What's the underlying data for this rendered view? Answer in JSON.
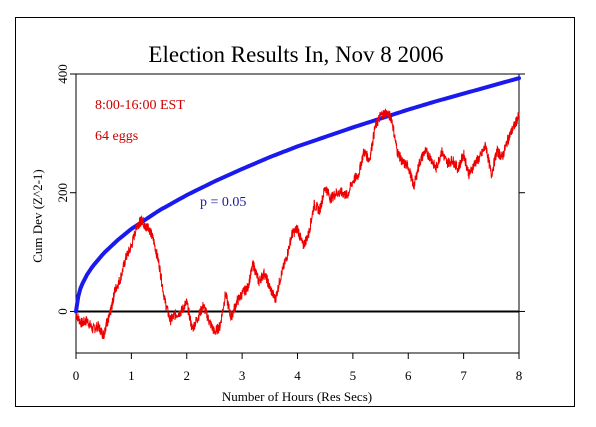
{
  "chart_data": {
    "type": "line",
    "title": "Election Results In, Nov 8 2006",
    "xlabel": "Number of Hours (Res Secs)",
    "ylabel": "Cum Dev (Z^2-1)",
    "xlim": [
      0,
      8
    ],
    "ylim": [
      -70,
      400
    ],
    "x_ticks": [
      "0",
      "1",
      "2",
      "3",
      "4",
      "5",
      "6",
      "7",
      "8"
    ],
    "y_ticks": [
      "0",
      "200",
      "400"
    ],
    "grid": false,
    "annotations": {
      "time_range": "8:00-16:00 EST",
      "eggs": "64 eggs",
      "p_label": "p = 0.05"
    },
    "colors": {
      "data": "#ee0000",
      "p_curve": "#1a1aee",
      "baseline": "#000000",
      "annotation_red": "#cc0000",
      "annotation_blue": "#1a1aaa"
    },
    "series": [
      {
        "kind": "p_curve",
        "x": [
          0,
          0.05,
          0.1,
          0.2,
          0.3,
          0.5,
          0.75,
          1,
          1.5,
          2,
          2.5,
          3,
          3.5,
          4,
          4.5,
          5,
          5.5,
          6,
          6.5,
          7,
          7.5,
          8
        ],
        "y": [
          0,
          31,
          44,
          62,
          76,
          98,
          120,
          139,
          170,
          196,
          219,
          240,
          260,
          278,
          294,
          310,
          325,
          340,
          354,
          367,
          380,
          393
        ]
      },
      {
        "kind": "data",
        "x": [
          0,
          0.1,
          0.2,
          0.3,
          0.4,
          0.5,
          0.55,
          0.6,
          0.65,
          0.7,
          0.8,
          0.9,
          1.0,
          1.1,
          1.15,
          1.2,
          1.25,
          1.3,
          1.4,
          1.5,
          1.6,
          1.7,
          1.8,
          1.9,
          2.0,
          2.1,
          2.2,
          2.3,
          2.4,
          2.5,
          2.6,
          2.7,
          2.8,
          2.9,
          3.0,
          3.1,
          3.2,
          3.3,
          3.4,
          3.5,
          3.6,
          3.7,
          3.8,
          3.9,
          4.0,
          4.1,
          4.2,
          4.3,
          4.4,
          4.5,
          4.6,
          4.7,
          4.8,
          4.9,
          5.0,
          5.1,
          5.2,
          5.3,
          5.4,
          5.5,
          5.6,
          5.7,
          5.8,
          5.9,
          6.0,
          6.1,
          6.2,
          6.3,
          6.4,
          6.5,
          6.6,
          6.7,
          6.8,
          6.9,
          7.0,
          7.1,
          7.2,
          7.3,
          7.4,
          7.5,
          7.6,
          7.7,
          7.8,
          7.9,
          8.0
        ],
        "y": [
          -5,
          -20,
          -15,
          -30,
          -25,
          -40,
          -20,
          -10,
          10,
          35,
          55,
          90,
          110,
          145,
          150,
          155,
          140,
          145,
          120,
          80,
          20,
          -15,
          -5,
          0,
          15,
          -30,
          -10,
          10,
          -15,
          -35,
          -25,
          30,
          -10,
          15,
          30,
          40,
          80,
          50,
          65,
          40,
          20,
          60,
          90,
          130,
          140,
          110,
          130,
          180,
          170,
          210,
          190,
          200,
          200,
          195,
          220,
          230,
          270,
          255,
          310,
          330,
          335,
          325,
          270,
          250,
          245,
          210,
          250,
          270,
          260,
          240,
          270,
          250,
          255,
          240,
          265,
          230,
          250,
          260,
          280,
          230,
          270,
          260,
          290,
          310,
          330
        ]
      }
    ]
  }
}
